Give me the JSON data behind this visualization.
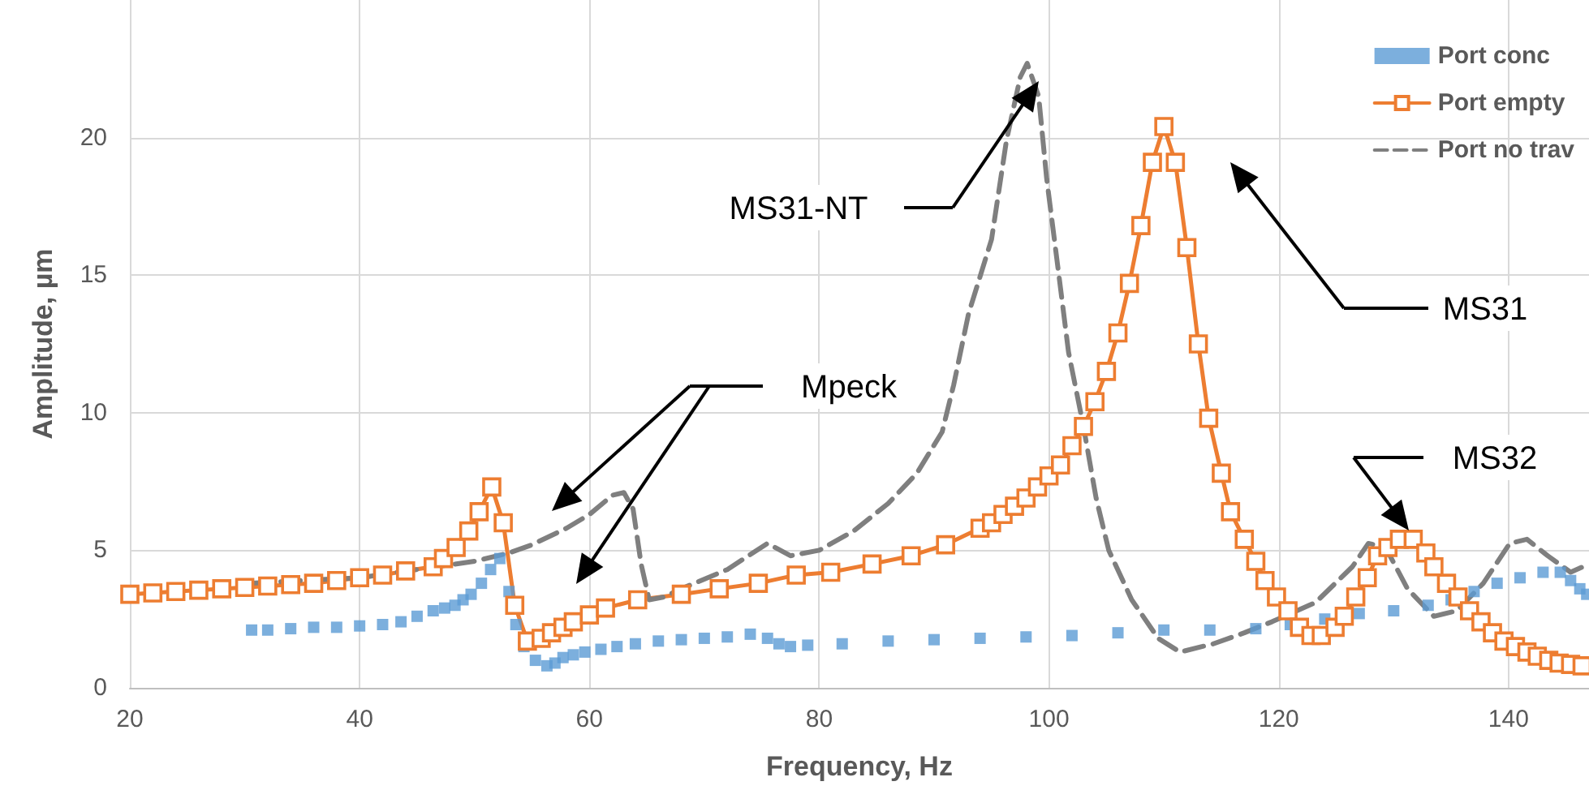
{
  "chart_data": {
    "type": "line",
    "xlabel": "Frequency, Hz",
    "ylabel": "Amplitude, µm",
    "xlim": [
      20,
      147
    ],
    "xticks": [
      20,
      40,
      60,
      80,
      100,
      120,
      140
    ],
    "ylim": [
      0,
      25
    ],
    "yticks": [
      0,
      5,
      10,
      15,
      20
    ],
    "grid": true,
    "legend": "top right",
    "series": [
      {
        "name": "Port conc",
        "type": "scatter",
        "marker": "square",
        "color": "#5b9bd5",
        "x": [
          30.6,
          32,
          34,
          36,
          38,
          40,
          42,
          43.6,
          45,
          46.4,
          47.4,
          48.3,
          49,
          49.7,
          50.6,
          51.4,
          52.2,
          53,
          53.6,
          54.3,
          55.3,
          56.3,
          57,
          57.7,
          58.6,
          59.6,
          61,
          62.4,
          64,
          66,
          68,
          70,
          72,
          74,
          75.5,
          76.5,
          77.5,
          79,
          82,
          86,
          90,
          94,
          98,
          102,
          106,
          110,
          114,
          118,
          121,
          124,
          127,
          130,
          133,
          135,
          137,
          139,
          141,
          143,
          144.5,
          145.4,
          146.2,
          146.8
        ],
        "values": [
          2.1,
          2.1,
          2.15,
          2.2,
          2.2,
          2.25,
          2.3,
          2.4,
          2.6,
          2.8,
          2.9,
          3.0,
          3.2,
          3.4,
          3.8,
          4.3,
          4.7,
          3.5,
          2.3,
          1.5,
          1.0,
          0.8,
          0.9,
          1.1,
          1.2,
          1.3,
          1.4,
          1.5,
          1.6,
          1.7,
          1.75,
          1.8,
          1.85,
          1.95,
          1.8,
          1.6,
          1.5,
          1.55,
          1.6,
          1.7,
          1.75,
          1.8,
          1.85,
          1.9,
          2.0,
          2.1,
          2.1,
          2.15,
          2.3,
          2.5,
          2.7,
          2.8,
          3.0,
          3.2,
          3.5,
          3.8,
          4.0,
          4.2,
          4.2,
          3.9,
          3.6,
          3.4
        ]
      },
      {
        "name": "Port empty",
        "marker": "square",
        "line_style": "solid",
        "color": "#ed7d31",
        "x": [
          20,
          22,
          24,
          26,
          28,
          30,
          32,
          34,
          36,
          38,
          40,
          42,
          44,
          46.4,
          47.3,
          48.4,
          49.5,
          50.4,
          51.5,
          52.5,
          53.5,
          54.6,
          55.8,
          56.7,
          57.7,
          58.6,
          60,
          61.4,
          64.2,
          68,
          71.3,
          74.7,
          78,
          81,
          84.6,
          88,
          91,
          94,
          95,
          96,
          97,
          98,
          99,
          100,
          101,
          102,
          103,
          104,
          105,
          106,
          107,
          108,
          109,
          110,
          111,
          112,
          113,
          113.9,
          115,
          115.8,
          117,
          118,
          118.8,
          119.8,
          120.8,
          121.8,
          122.8,
          123.7,
          124.9,
          125.7,
          126.7,
          127.7,
          128.6,
          129.5,
          130.5,
          131.7,
          132.8,
          133.5,
          134.6,
          135.6,
          136.6,
          137.6,
          138.6,
          139.6,
          140.6,
          141.6,
          142.5,
          143.5,
          144.4,
          145.4,
          146.4
        ],
        "values": [
          3.4,
          3.45,
          3.5,
          3.55,
          3.6,
          3.65,
          3.7,
          3.75,
          3.8,
          3.9,
          4.0,
          4.1,
          4.25,
          4.4,
          4.7,
          5.1,
          5.7,
          6.4,
          7.3,
          6.0,
          3.0,
          1.7,
          1.8,
          2.0,
          2.2,
          2.4,
          2.65,
          2.9,
          3.2,
          3.4,
          3.6,
          3.8,
          4.1,
          4.2,
          4.5,
          4.8,
          5.2,
          5.8,
          6.0,
          6.3,
          6.6,
          6.9,
          7.3,
          7.7,
          8.1,
          8.8,
          9.5,
          10.4,
          11.5,
          12.9,
          14.7,
          16.8,
          19.1,
          20.4,
          19.1,
          16.0,
          12.5,
          9.8,
          7.8,
          6.4,
          5.4,
          4.6,
          3.9,
          3.3,
          2.8,
          2.2,
          1.9,
          1.9,
          2.2,
          2.6,
          3.3,
          4.0,
          4.8,
          5.1,
          5.4,
          5.4,
          4.9,
          4.4,
          3.8,
          3.3,
          2.8,
          2.4,
          2.0,
          1.7,
          1.5,
          1.3,
          1.15,
          1.0,
          0.9,
          0.85,
          0.8
        ]
      },
      {
        "name": "Port no trav",
        "marker": "none",
        "line_style": "dashed",
        "color": "#7f7f7f",
        "x": [
          30.6,
          35,
          40,
          45,
          50,
          53,
          55,
          58,
          60,
          62,
          63,
          63.8,
          64.5,
          65.2,
          66.5,
          68,
          72,
          75.5,
          77.5,
          80,
          83,
          86,
          88.5,
          90.7,
          91.7,
          93,
          95,
          96.3,
          97.5,
          98.1,
          99.1,
          99.8,
          100.8,
          101.7,
          103,
          104.1,
          105.2,
          107.2,
          109.5,
          111.4,
          114.3,
          117,
          119.4,
          123.2,
          126.4,
          127.8,
          129.3,
          131.2,
          133.5,
          135.5,
          137.8,
          140.1,
          141.6,
          143.4,
          145.4,
          147
        ],
        "values": [
          3.8,
          3.9,
          4.0,
          4.3,
          4.6,
          4.9,
          5.2,
          5.8,
          6.3,
          7.0,
          7.1,
          6.5,
          4.5,
          3.2,
          3.3,
          3.6,
          4.3,
          5.25,
          4.8,
          5.0,
          5.7,
          6.7,
          7.8,
          9.3,
          11.0,
          13.6,
          16.3,
          19.9,
          22.2,
          22.7,
          21.5,
          18.5,
          15.2,
          12.2,
          9.5,
          6.9,
          5.0,
          3.2,
          1.8,
          1.3,
          1.6,
          2.0,
          2.4,
          3.1,
          4.4,
          5.25,
          5.1,
          3.6,
          2.6,
          2.8,
          3.8,
          5.25,
          5.4,
          4.8,
          4.2,
          4.5
        ]
      }
    ],
    "annotations": [
      "MS31-NT",
      "Mpeck",
      "MS31",
      "MS32"
    ]
  }
}
